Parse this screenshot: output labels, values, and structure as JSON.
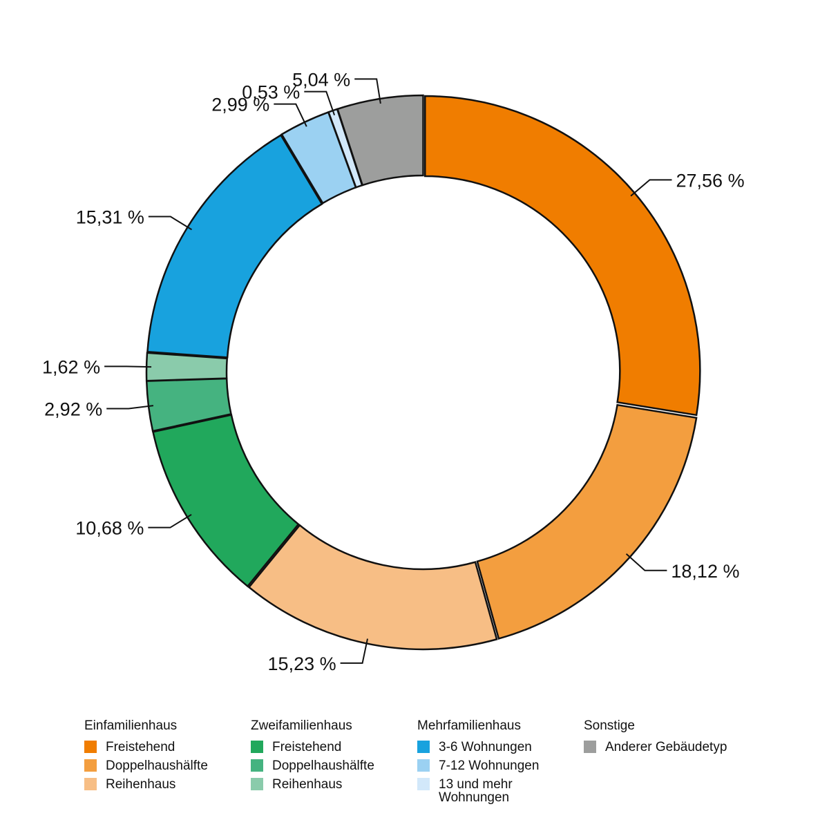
{
  "chart_data": {
    "type": "pie",
    "variant": "donut",
    "slices": [
      {
        "group": "Einfamilienhaus",
        "name": "Freistehend",
        "value": 27.56,
        "label": "27,56 %",
        "color": "#F07D00"
      },
      {
        "group": "Einfamilienhaus",
        "name": "Doppelhaushälfte",
        "value": 18.12,
        "label": "18,12 %",
        "color": "#F39E3F"
      },
      {
        "group": "Einfamilienhaus",
        "name": "Reihenhaus",
        "value": 15.23,
        "label": "15,23 %",
        "color": "#F7BE85"
      },
      {
        "group": "Zweifamilienhaus",
        "name": "Freistehend",
        "value": 10.68,
        "label": "10,68 %",
        "color": "#21A85C"
      },
      {
        "group": "Zweifamilienhaus",
        "name": "Doppelhaushälfte",
        "value": 2.92,
        "label": "2,92 %",
        "color": "#45B380"
      },
      {
        "group": "Zweifamilienhaus",
        "name": "Reihenhaus",
        "value": 1.62,
        "label": "1,62 %",
        "color": "#8ACBAB"
      },
      {
        "group": "Mehrfamilienhaus",
        "name": "3-6 Wohnungen",
        "value": 15.31,
        "label": "15,31 %",
        "color": "#18A2DE"
      },
      {
        "group": "Mehrfamilienhaus",
        "name": "7-12 Wohnungen",
        "value": 2.99,
        "label": "2,99 %",
        "color": "#9BD1F2"
      },
      {
        "group": "Mehrfamilienhaus",
        "name": "13 und mehr Wohnungen",
        "value": 0.53,
        "label": "0,53 %",
        "color": "#D2E8FA"
      },
      {
        "group": "Sonstige",
        "name": "Anderer Gebäudetyp",
        "value": 5.04,
        "label": "5,04 %",
        "color": "#9D9E9D"
      }
    ]
  },
  "legend": [
    {
      "title": "Einfamilienhaus",
      "items": [
        {
          "label": "Freistehend",
          "color": "#F07D00"
        },
        {
          "label": "Doppelhaushälfte",
          "color": "#F39E3F"
        },
        {
          "label": "Reihenhaus",
          "color": "#F7BE85"
        }
      ]
    },
    {
      "title": "Zweifamilienhaus",
      "items": [
        {
          "label": "Freistehend",
          "color": "#21A85C"
        },
        {
          "label": "Doppelhaushälfte",
          "color": "#45B380"
        },
        {
          "label": "Reihenhaus",
          "color": "#8ACBAB"
        }
      ]
    },
    {
      "title": "Mehrfamilienhaus",
      "items": [
        {
          "label": "3-6 Wohnungen",
          "color": "#18A2DE"
        },
        {
          "label": "7-12 Wohnungen",
          "color": "#9BD1F2"
        },
        {
          "label": "13 und mehr Wohnungen",
          "color": "#D2E8FA"
        }
      ]
    },
    {
      "title": "Sonstige",
      "items": [
        {
          "label": "Anderer Gebäudetyp",
          "color": "#9D9E9D"
        }
      ]
    }
  ]
}
